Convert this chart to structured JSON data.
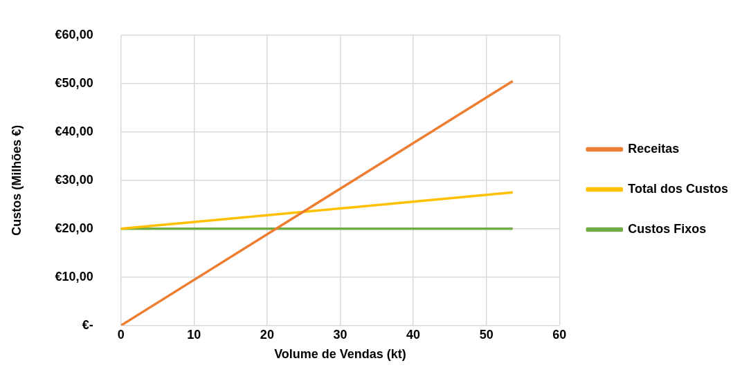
{
  "chart_data": {
    "type": "line",
    "xlabel": "Volume de Vendas (kt)",
    "ylabel": "Custos (Milhões €)",
    "xlim": [
      0,
      60
    ],
    "xticks": [
      0,
      10,
      20,
      30,
      40,
      50,
      60
    ],
    "ylim": [
      0,
      60
    ],
    "yticks": [
      {
        "value": 0,
        "label": "€-"
      },
      {
        "value": 10,
        "label": "€10,00"
      },
      {
        "value": 20,
        "label": "€20,00"
      },
      {
        "value": 30,
        "label": "€30,00"
      },
      {
        "value": 40,
        "label": "€40,00"
      },
      {
        "value": 50,
        "label": "€50,00"
      },
      {
        "value": 60,
        "label": "€60,00"
      }
    ],
    "grid": true,
    "legend": "right",
    "marker": "none",
    "line_style": "solid",
    "x": [
      0,
      53.6
    ],
    "series": [
      {
        "name": "Receitas",
        "color": "#ed7d31",
        "values": [
          0,
          50.5
        ]
      },
      {
        "name": "Total dos Custos",
        "color": "#ffc000",
        "values": [
          20,
          27.5
        ]
      },
      {
        "name": "Custos Fixos",
        "color": "#70ad47",
        "values": [
          20,
          20
        ]
      }
    ]
  }
}
